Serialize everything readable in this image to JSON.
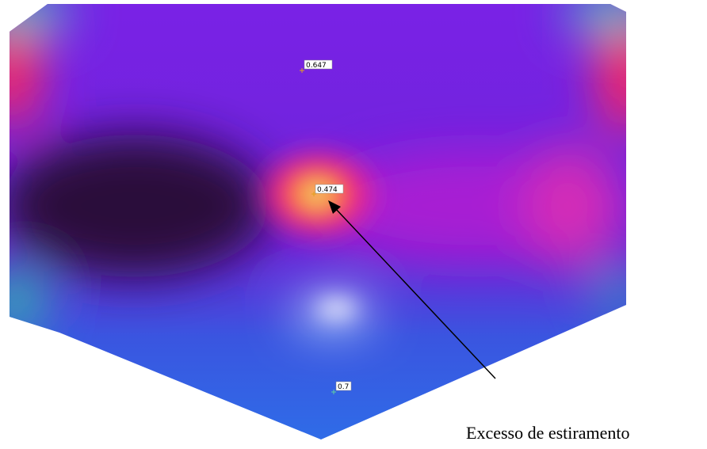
{
  "labels": [
    {
      "text": "0.647"
    },
    {
      "text": "0.474"
    },
    {
      "text": "0.7"
    }
  ],
  "annotation": {
    "text": "Excesso de estiramento"
  }
}
